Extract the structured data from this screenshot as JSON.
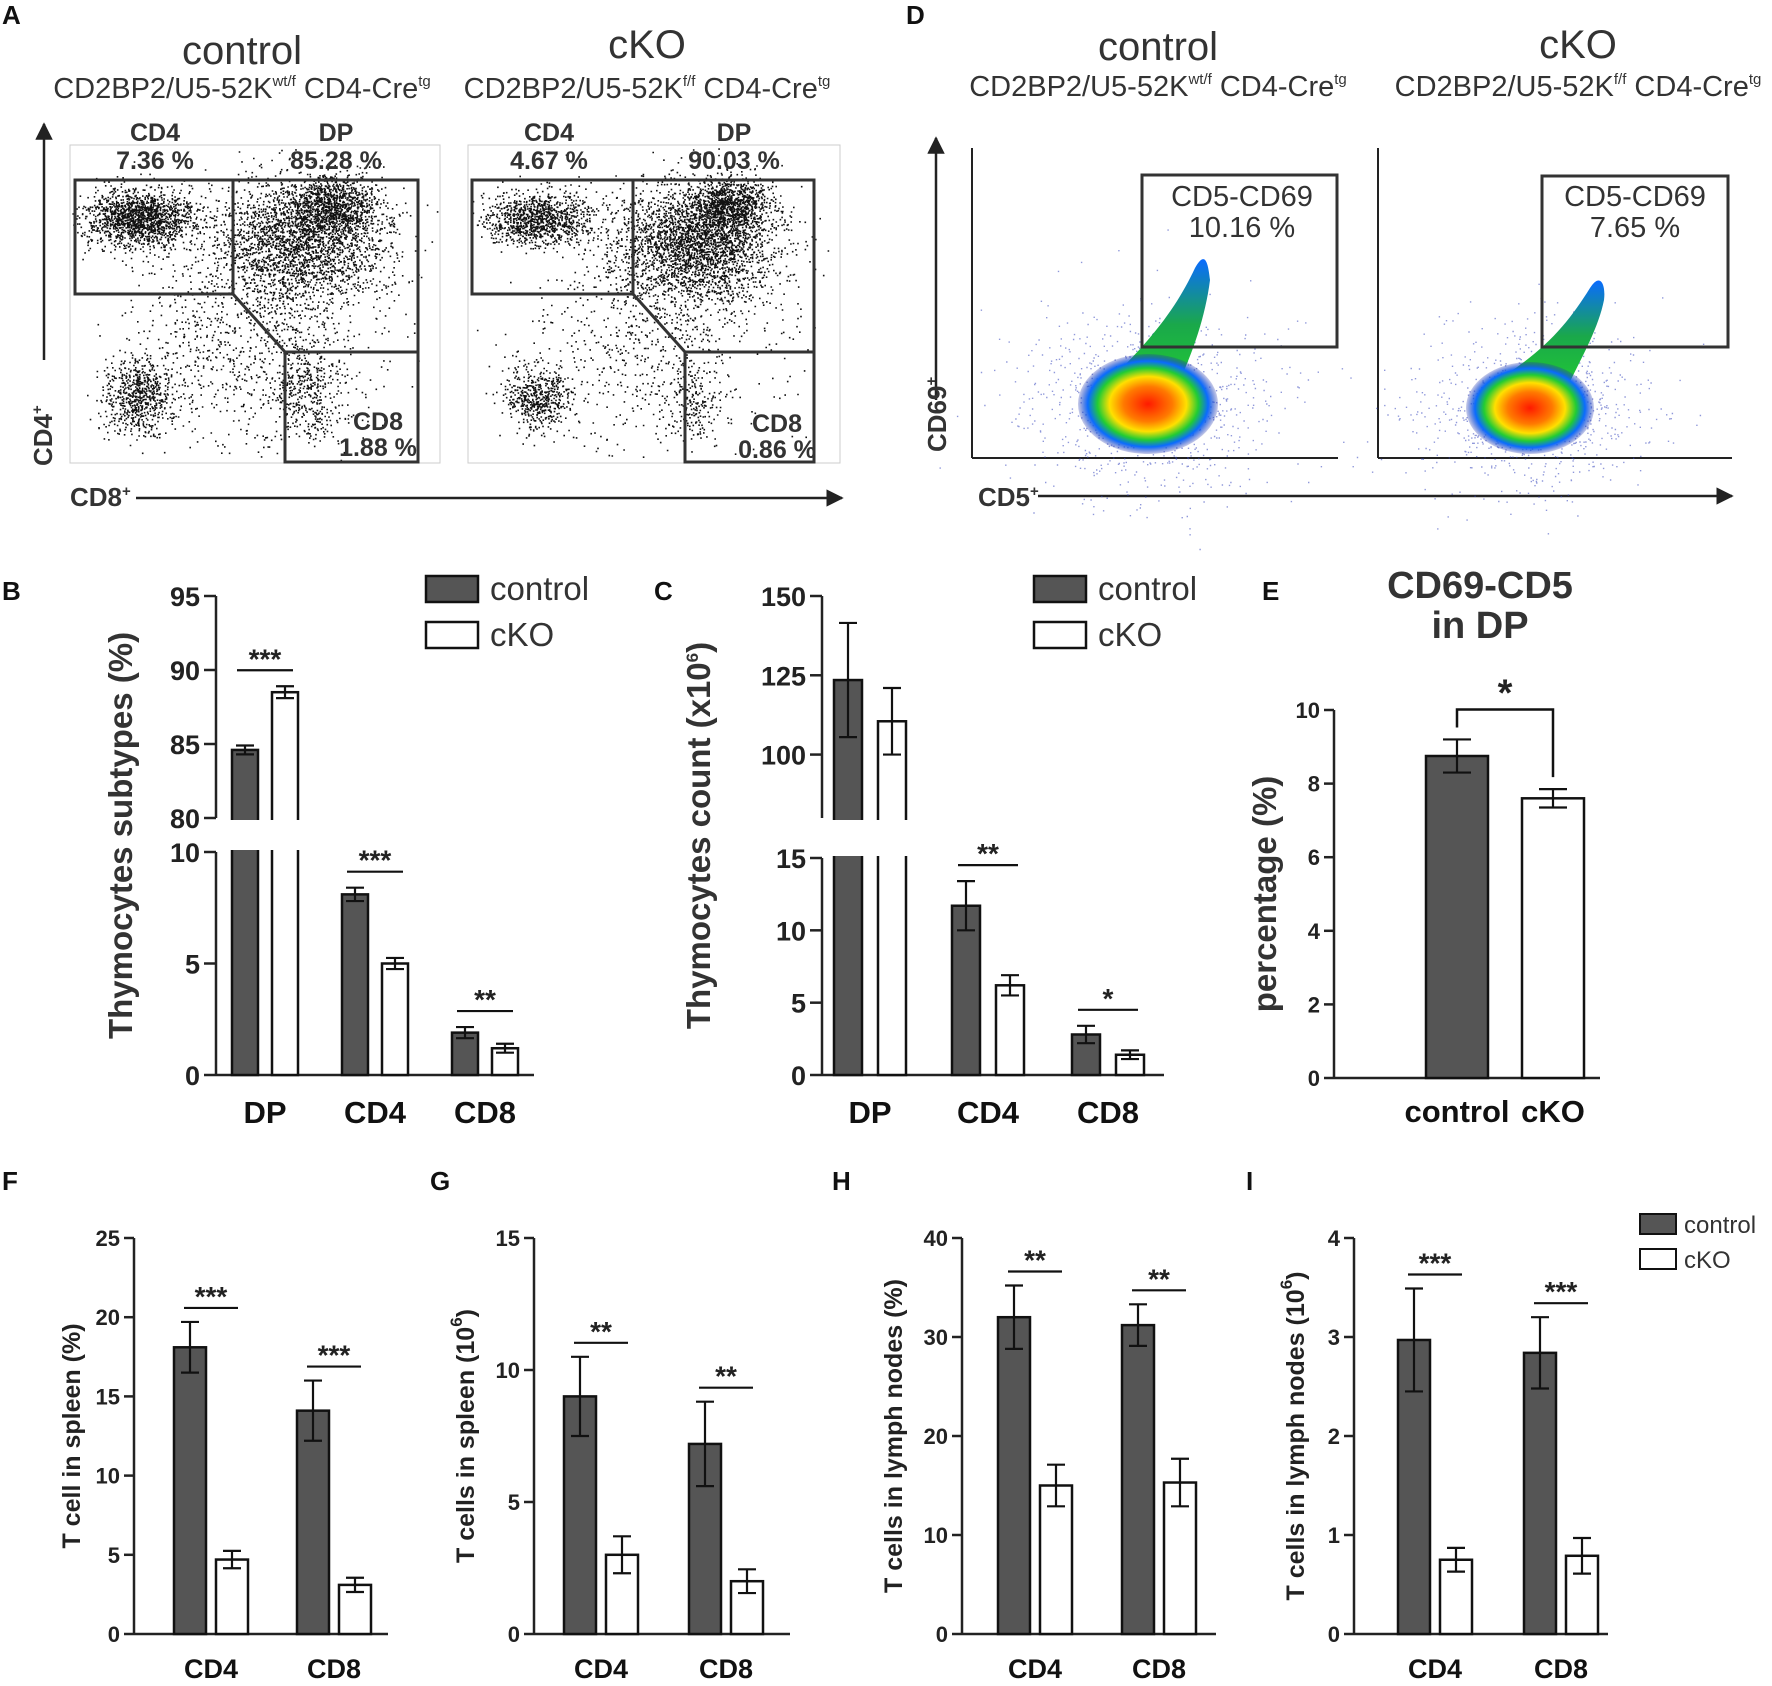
{
  "colors": {
    "control": "#555555",
    "cko": "#ffffff",
    "axis": "#222222",
    "gate": "#333333"
  },
  "flow": {
    "A": {
      "label": "A",
      "y_axis_label": "CD4",
      "x_axis_label": "CD8",
      "panels": [
        {
          "name": "control",
          "genotype": "CD2BP2/U5-52K",
          "genotype_sup": "wt/f",
          "cre": " CD4-Cre",
          "cre_sup": "tg",
          "gates": [
            {
              "name": "CD4",
              "value": "7.36 %"
            },
            {
              "name": "DP",
              "value": "85.28 %"
            },
            {
              "name": "CD8",
              "value": "1.88 %"
            }
          ]
        },
        {
          "name": "cKO",
          "genotype": "CD2BP2/U5-52K",
          "genotype_sup": "f/f",
          "cre": " CD4-Cre",
          "cre_sup": "tg",
          "gates": [
            {
              "name": "CD4",
              "value": "4.67 %"
            },
            {
              "name": "DP",
              "value": "90.03 %"
            },
            {
              "name": "CD8",
              "value": "0.86 %"
            }
          ]
        }
      ]
    },
    "D": {
      "label": "D",
      "y_axis_label": "CD69",
      "x_axis_label": "CD5",
      "panels": [
        {
          "name": "control",
          "genotype": "CD2BP2/U5-52K",
          "genotype_sup": "wt/f",
          "cre": " CD4-Cre",
          "cre_sup": "tg",
          "gate": {
            "name": "CD5-CD69",
            "value": "10.16 %"
          }
        },
        {
          "name": "cKO",
          "genotype": "CD2BP2/U5-52K",
          "genotype_sup": "f/f",
          "cre": " CD4-Cre",
          "cre_sup": "tg",
          "gate": {
            "name": "CD5-CD69",
            "value": "7.65 %"
          }
        }
      ]
    }
  },
  "chart_data": [
    {
      "panel": "B",
      "type": "bar",
      "ylabel": "Thymocytes subtypes (%)",
      "categories": [
        "DP",
        "CD4",
        "CD8"
      ],
      "series": [
        {
          "name": "control",
          "values": [
            84.6,
            8.1,
            1.9
          ],
          "errors": [
            0.3,
            0.3,
            0.25
          ]
        },
        {
          "name": "cKO",
          "values": [
            88.5,
            5.0,
            1.2
          ],
          "errors": [
            0.4,
            0.25,
            0.2
          ]
        }
      ],
      "broken_axis": {
        "lower": [
          0,
          10
        ],
        "upper": [
          80,
          95
        ]
      },
      "yticks_lower": [
        "0",
        "5",
        "10"
      ],
      "yticks_upper": [
        "80",
        "85",
        "90",
        "95"
      ],
      "significance": [
        "***",
        "***",
        "**"
      ],
      "legend": "top-right"
    },
    {
      "panel": "C",
      "type": "bar",
      "ylabel": "Thymocytes count (x10",
      "ylabel_sup": "6",
      "ylabel_end": ")",
      "categories": [
        "DP",
        "CD4",
        "CD8"
      ],
      "series": [
        {
          "name": "control",
          "values": [
            123.5,
            11.7,
            2.8
          ],
          "errors": [
            18,
            1.7,
            0.6
          ]
        },
        {
          "name": "cKO",
          "values": [
            110.5,
            6.2,
            1.4
          ],
          "errors": [
            10.5,
            0.7,
            0.3
          ]
        }
      ],
      "broken_axis": {
        "lower": [
          0,
          15
        ],
        "upper": [
          80,
          150
        ]
      },
      "yticks_lower": [
        "0",
        "5",
        "10",
        "15"
      ],
      "yticks_upper": [
        "100",
        "125",
        "150"
      ],
      "significance": [
        "",
        "**",
        "*"
      ],
      "legend": "top-right"
    },
    {
      "panel": "E",
      "type": "bar",
      "title_line1": "CD69-CD5",
      "title_line2": "in DP",
      "ylabel": "percentage (%)",
      "categories": [
        "control",
        "cKO"
      ],
      "values": [
        8.75,
        7.6
      ],
      "errors": [
        0.45,
        0.25
      ],
      "ylim": [
        0,
        10
      ],
      "yticks": [
        "0",
        "2",
        "4",
        "6",
        "8",
        "10"
      ],
      "significance": "*"
    },
    {
      "panel": "F",
      "type": "bar",
      "ylabel": "T cell in spleen (%)",
      "categories": [
        "CD4",
        "CD8"
      ],
      "series": [
        {
          "name": "control",
          "values": [
            18.1,
            14.1
          ],
          "errors": [
            1.6,
            1.9
          ]
        },
        {
          "name": "cKO",
          "values": [
            4.7,
            3.1
          ],
          "errors": [
            0.55,
            0.45
          ]
        }
      ],
      "ylim": [
        0,
        25
      ],
      "yticks": [
        "0",
        "5",
        "10",
        "15",
        "20",
        "25"
      ],
      "significance": [
        "***",
        "***"
      ]
    },
    {
      "panel": "G",
      "type": "bar",
      "ylabel": "T cells in spleen (10",
      "ylabel_sup": "6",
      "ylabel_end": ")",
      "categories": [
        "CD4",
        "CD8"
      ],
      "series": [
        {
          "name": "control",
          "values": [
            9.0,
            7.2
          ],
          "errors": [
            1.5,
            1.6
          ]
        },
        {
          "name": "cKO",
          "values": [
            3.0,
            2.0
          ],
          "errors": [
            0.7,
            0.45
          ]
        }
      ],
      "ylim": [
        0,
        15
      ],
      "yticks": [
        "0",
        "5",
        "10",
        "15"
      ],
      "significance": [
        "**",
        "**"
      ]
    },
    {
      "panel": "H",
      "type": "bar",
      "ylabel": "T cells in lymph nodes (%)",
      "categories": [
        "CD4",
        "CD8"
      ],
      "series": [
        {
          "name": "control",
          "values": [
            32.0,
            31.2
          ],
          "errors": [
            3.2,
            2.1
          ]
        },
        {
          "name": "cKO",
          "values": [
            15.0,
            15.3
          ],
          "errors": [
            2.1,
            2.4
          ]
        }
      ],
      "ylim": [
        0,
        40
      ],
      "yticks": [
        "0",
        "10",
        "20",
        "30",
        "40"
      ],
      "significance": [
        "**",
        "**"
      ]
    },
    {
      "panel": "I",
      "type": "bar",
      "ylabel": "T cells in lymph nodes (10",
      "ylabel_sup": "6",
      "ylabel_end": ")",
      "categories": [
        "CD4",
        "CD8"
      ],
      "series": [
        {
          "name": "control",
          "values": [
            2.97,
            2.84
          ],
          "errors": [
            0.52,
            0.36
          ]
        },
        {
          "name": "cKO",
          "values": [
            0.75,
            0.79
          ],
          "errors": [
            0.12,
            0.18
          ]
        }
      ],
      "ylim": [
        0,
        4
      ],
      "yticks": [
        "0",
        "1",
        "2",
        "3",
        "4"
      ],
      "significance": [
        "***",
        "***"
      ],
      "legend": "top-right"
    }
  ]
}
